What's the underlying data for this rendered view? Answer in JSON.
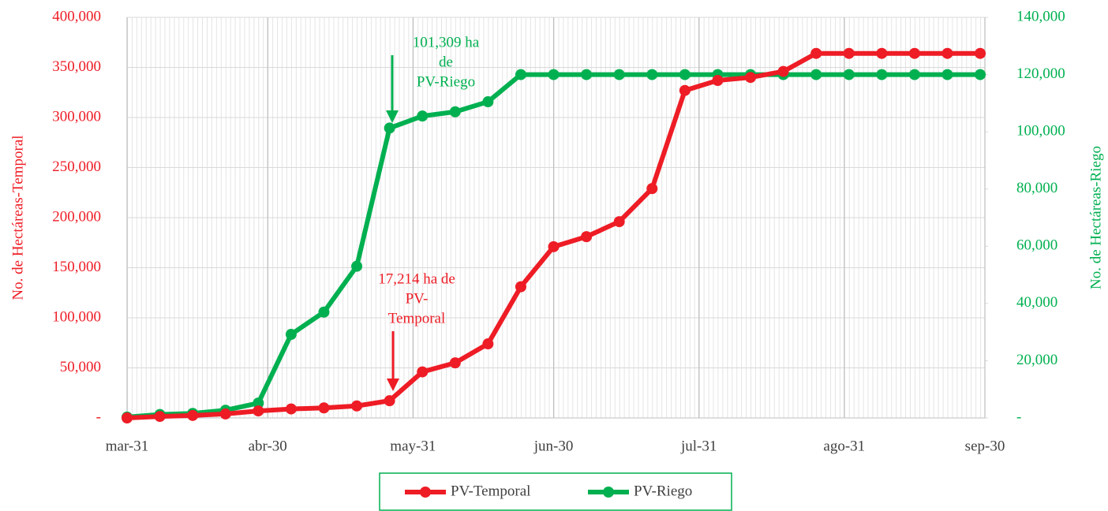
{
  "chart_data": {
    "type": "line",
    "y_label": "No. de Hectáreas-Temporal",
    "y2_label": "No. de Hectáreas-Riego",
    "x": [
      0,
      7,
      14,
      21,
      28,
      35,
      42,
      49,
      56,
      63,
      70,
      77,
      84,
      91,
      98,
      105,
      112,
      119,
      126,
      133,
      140,
      147,
      154,
      161,
      168,
      175,
      182
    ],
    "xlim": [
      0,
      183
    ],
    "xticks": [
      {
        "value": 0,
        "label": "mar-31"
      },
      {
        "value": 30,
        "label": "abr-30"
      },
      {
        "value": 61,
        "label": "may-31"
      },
      {
        "value": 91,
        "label": "jun-30"
      },
      {
        "value": 122,
        "label": "jul-31"
      },
      {
        "value": 153,
        "label": "ago-31"
      },
      {
        "value": 183,
        "label": "sep-30"
      }
    ],
    "ylim": [
      0,
      400000
    ],
    "yticks": [
      {
        "value": 0,
        "label": "-"
      },
      {
        "value": 50000,
        "label": "50,000"
      },
      {
        "value": 100000,
        "label": "100,000"
      },
      {
        "value": 150000,
        "label": "150,000"
      },
      {
        "value": 200000,
        "label": "200,000"
      },
      {
        "value": 250000,
        "label": "250,000"
      },
      {
        "value": 300000,
        "label": "300,000"
      },
      {
        "value": 350000,
        "label": "350,000"
      },
      {
        "value": 400000,
        "label": "400,000"
      }
    ],
    "y2lim": [
      0,
      140000
    ],
    "y2ticks": [
      {
        "value": 0,
        "label": "-"
      },
      {
        "value": 20000,
        "label": "20,000"
      },
      {
        "value": 40000,
        "label": "40,000"
      },
      {
        "value": 60000,
        "label": "60,000"
      },
      {
        "value": 80000,
        "label": "80,000"
      },
      {
        "value": 100000,
        "label": "100,000"
      },
      {
        "value": 120000,
        "label": "120,000"
      },
      {
        "value": 140000,
        "label": "140,000"
      }
    ],
    "grid": true,
    "legend": "bottom",
    "series": [
      {
        "name": "PV-Temporal",
        "color": "#ee1c25",
        "values": [
          0,
          1500,
          2500,
          4000,
          7000,
          9000,
          10000,
          12000,
          17214,
          46000,
          55000,
          74000,
          131000,
          171000,
          181000,
          196000,
          229000,
          327000,
          337000,
          340000,
          346000,
          364000,
          364000,
          364000,
          364000,
          364000,
          364000
        ]
      },
      {
        "name": "PV-Riego",
        "color": "#00b050",
        "axis": "y2",
        "values": [
          300,
          1200,
          1600,
          2700,
          5200,
          29200,
          37000,
          53000,
          101309,
          105500,
          107000,
          110500,
          120000,
          120000,
          120000,
          120000,
          120000,
          120000,
          120000,
          120000,
          120000,
          120000,
          120000,
          120000,
          120000,
          120000,
          120000
        ]
      }
    ],
    "annotations": [
      {
        "lines": [
          "101,309 ha",
          "de",
          "PV-Riego"
        ],
        "color": "#00b050"
      },
      {
        "lines": [
          "17,214 ha de",
          "PV-",
          "Temporal"
        ],
        "color": "#ee1c25"
      }
    ]
  }
}
